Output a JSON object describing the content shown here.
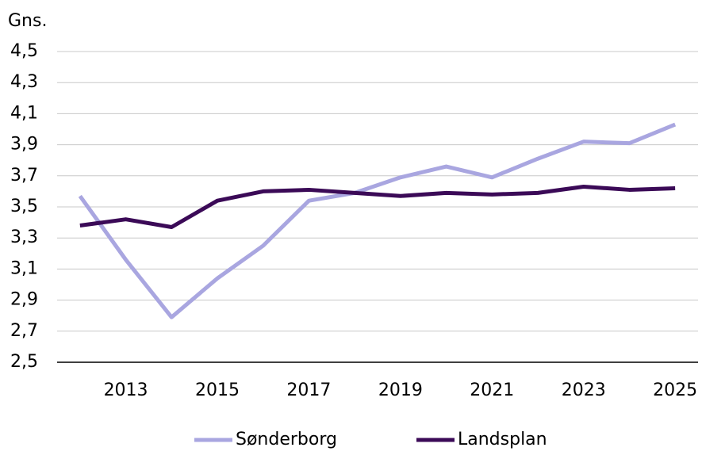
{
  "chart_data": {
    "type": "line",
    "y_label": "Gns.",
    "x": [
      2012,
      2013,
      2014,
      2015,
      2016,
      2017,
      2018,
      2019,
      2020,
      2021,
      2022,
      2023,
      2024,
      2025
    ],
    "series": [
      {
        "name": "Sønderborg",
        "color": "#a9a6e0",
        "values": [
          3.57,
          3.16,
          2.79,
          3.04,
          3.25,
          3.54,
          3.59,
          3.69,
          3.76,
          3.69,
          3.81,
          3.92,
          3.91,
          4.03
        ]
      },
      {
        "name": "Landsplan",
        "color": "#3b0a57",
        "values": [
          3.38,
          3.42,
          3.37,
          3.54,
          3.6,
          3.61,
          3.59,
          3.57,
          3.59,
          3.58,
          3.59,
          3.63,
          3.61,
          3.62
        ]
      }
    ],
    "xlim": [
      2011.5,
      2025.5
    ],
    "xticks": [
      2013,
      2015,
      2017,
      2019,
      2021,
      2023,
      2025
    ],
    "ylim": [
      2.5,
      4.5
    ],
    "yticks": [
      {
        "value": 2.5,
        "label": "2,5"
      },
      {
        "value": 2.7,
        "label": "2,7"
      },
      {
        "value": 2.9,
        "label": "2,9"
      },
      {
        "value": 3.1,
        "label": "3,1"
      },
      {
        "value": 3.3,
        "label": "3,3"
      },
      {
        "value": 3.5,
        "label": "3,5"
      },
      {
        "value": 3.7,
        "label": "3,7"
      },
      {
        "value": 3.9,
        "label": "3,9"
      },
      {
        "value": 4.1,
        "label": "4,1"
      },
      {
        "value": 4.3,
        "label": "4,3"
      },
      {
        "value": 4.5,
        "label": "4,5"
      }
    ],
    "grid": true,
    "legend": "bottom"
  }
}
